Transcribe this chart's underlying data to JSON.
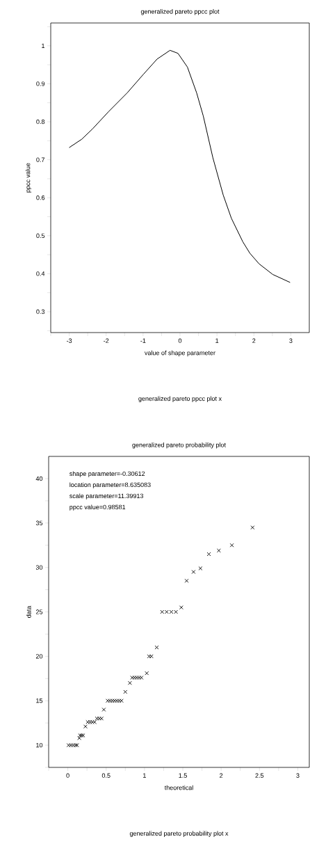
{
  "chart_data": [
    {
      "type": "line",
      "title": "generalized pareto ppcc plot",
      "xlabel": "value of shape parameter",
      "ylabel": "ppcc value",
      "annotations": [
        "generalized pareto ppcc plot x"
      ],
      "xlim": [
        -3.5,
        3.5
      ],
      "ylim": [
        0.245,
        1.06
      ],
      "xticks": [
        {
          "value": -3.5,
          "label": null
        },
        -3,
        {
          "value": -2.5,
          "label": null
        },
        -2,
        {
          "value": -1.5,
          "label": null
        },
        -1,
        {
          "value": -0.5,
          "label": null
        },
        0,
        {
          "value": 0.5,
          "label": null
        },
        1,
        {
          "value": 1.5,
          "label": null
        },
        2,
        {
          "value": 2.5,
          "label": null
        },
        3
      ],
      "yticks": [
        {
          "value": 0.25,
          "label": null
        },
        0.3,
        {
          "value": 0.35,
          "label": null
        },
        0.4,
        {
          "value": 0.45,
          "label": null
        },
        0.5,
        {
          "value": 0.55,
          "label": null
        },
        0.6,
        {
          "value": 0.65,
          "label": null
        },
        0.7,
        {
          "value": 0.75,
          "label": null
        },
        0.8,
        {
          "value": 0.85,
          "label": null
        },
        0.9,
        {
          "value": 0.95,
          "label": null
        },
        1,
        {
          "value": 1.05,
          "label": null
        }
      ],
      "marker": "none",
      "line_style": "solid",
      "series": [
        {
          "color": "#000000",
          "x": [
            -3,
            -2.66,
            -2.37,
            -1.93,
            -1.43,
            -0.99,
            -0.62,
            -0.27,
            -0.055,
            0.2,
            0.45,
            0.63,
            0.89,
            1.17,
            1.39,
            1.7,
            1.89,
            2.14,
            2.51,
            2.98
          ],
          "values": [
            0.732,
            0.754,
            0.781,
            0.827,
            0.876,
            0.925,
            0.965,
            0.988,
            0.98,
            0.944,
            0.876,
            0.815,
            0.705,
            0.607,
            0.546,
            0.484,
            0.454,
            0.426,
            0.398,
            0.377
          ]
        }
      ]
    },
    {
      "type": "scatter",
      "title": "generalized pareto probability plot",
      "xlabel": "theoretical",
      "ylabel": "data",
      "annotations": [
        "shape parameter=-0.30612",
        "location parameter=8.635083",
        "scale parameter=11.39913",
        "ppcc value=0.98581",
        "generalized pareto probability plot x"
      ],
      "xlim": [
        -0.25,
        3.15
      ],
      "ylim": [
        7.5,
        42.5
      ],
      "xticks": [
        {
          "value": -0.25,
          "label": null
        },
        0,
        {
          "value": 0.25,
          "label": null
        },
        0.5,
        {
          "value": 0.75,
          "label": null
        },
        1,
        {
          "value": 1.25,
          "label": null
        },
        1.5,
        {
          "value": 1.75,
          "label": null
        },
        2,
        {
          "value": 2.25,
          "label": null
        },
        2.5,
        {
          "value": 2.75,
          "label": null
        },
        3
      ],
      "yticks": [
        {
          "value": 7.5,
          "label": null
        },
        10,
        {
          "value": 12.5,
          "label": null
        },
        15,
        {
          "value": 17.5,
          "label": null
        },
        20,
        {
          "value": 22.5,
          "label": null
        },
        25,
        {
          "value": 27.5,
          "label": null
        },
        30,
        {
          "value": 32.5,
          "label": null
        },
        35,
        {
          "value": 37.5,
          "label": null
        },
        40
      ],
      "marker": "cross",
      "series": [
        {
          "color": "#000000",
          "x": [
            0.01,
            0.04,
            0.07,
            0.1,
            0.12,
            0.15,
            0.16,
            0.18,
            0.2,
            0.23,
            0.26,
            0.29,
            0.32,
            0.35,
            0.38,
            0.41,
            0.44,
            0.47,
            0.52,
            0.55,
            0.58,
            0.61,
            0.64,
            0.67,
            0.7,
            0.75,
            0.81,
            0.84,
            0.87,
            0.9,
            0.93,
            0.96,
            1.03,
            1.06,
            1.09,
            1.16,
            1.23,
            1.29,
            1.35,
            1.41,
            1.48,
            1.55,
            1.64,
            1.73,
            1.84,
            1.97,
            2.14,
            2.41
          ],
          "values": [
            10,
            10,
            10,
            10,
            10,
            10.8,
            11.1,
            11.1,
            11.1,
            12.1,
            12.6,
            12.6,
            12.6,
            12.6,
            13,
            13,
            13,
            14,
            15,
            15,
            15,
            15,
            15,
            15,
            15,
            16,
            17,
            17.6,
            17.6,
            17.6,
            17.6,
            17.6,
            18.1,
            20,
            20,
            21,
            25,
            25,
            25,
            25,
            25.5,
            28.5,
            29.5,
            29.9,
            31.5,
            31.9,
            32.5,
            34.5
          ]
        }
      ]
    }
  ]
}
